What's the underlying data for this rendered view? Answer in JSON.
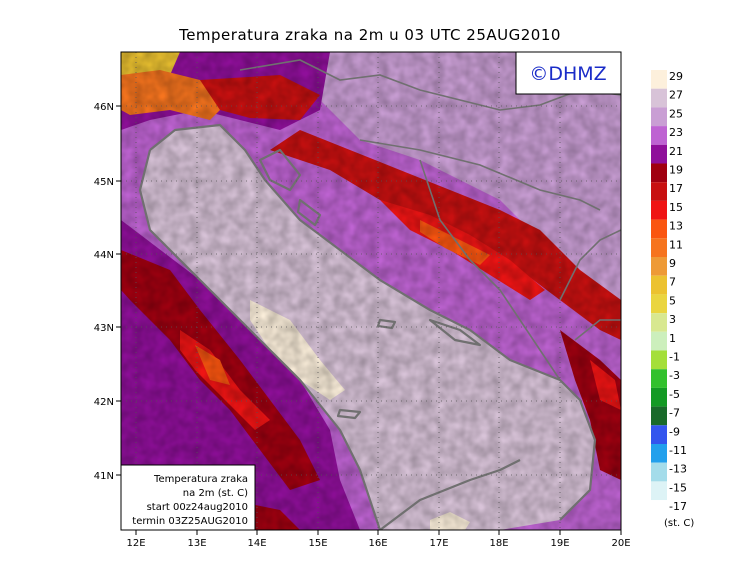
{
  "title": "Temperatura zraka na 2m u 03 UTC 25AUG2010",
  "logo_text": "©DHMZ",
  "info_box": {
    "lines": [
      "Temperatura zraka",
      "na 2m (st. C)",
      "start 00z24aug2010",
      "termin 03Z25AUG2010"
    ]
  },
  "axes": {
    "lon_labels": [
      "12E",
      "13E",
      "14E",
      "15E",
      "16E",
      "17E",
      "18E",
      "19E",
      "20E"
    ],
    "lat_labels": [
      "46N",
      "45N",
      "44N",
      "43N",
      "42N",
      "41N"
    ]
  },
  "legend": {
    "unit": "(st. C)",
    "labels": [
      "29",
      "27",
      "25",
      "23",
      "21",
      "19",
      "17",
      "15",
      "13",
      "11",
      "9",
      "7",
      "5",
      "3",
      "1",
      "-1",
      "-3",
      "-5",
      "-7",
      "-9",
      "-11",
      "-13",
      "-15",
      "-17"
    ],
    "colors": [
      "#fdf0dc",
      "#d8c3d8",
      "#c99ed4",
      "#be63d2",
      "#8f0f9a",
      "#a00010",
      "#c81010",
      "#ef1414",
      "#fa5510",
      "#f6741e",
      "#ee9a36",
      "#ecc230",
      "#ead540",
      "#d8e890",
      "#ccefbc",
      "#a4df3a",
      "#32c12d",
      "#139a24",
      "#196a2a",
      "#3355ee",
      "#22a0ec",
      "#a4dcea",
      "#ddf3f6",
      "#ffffff"
    ]
  }
}
